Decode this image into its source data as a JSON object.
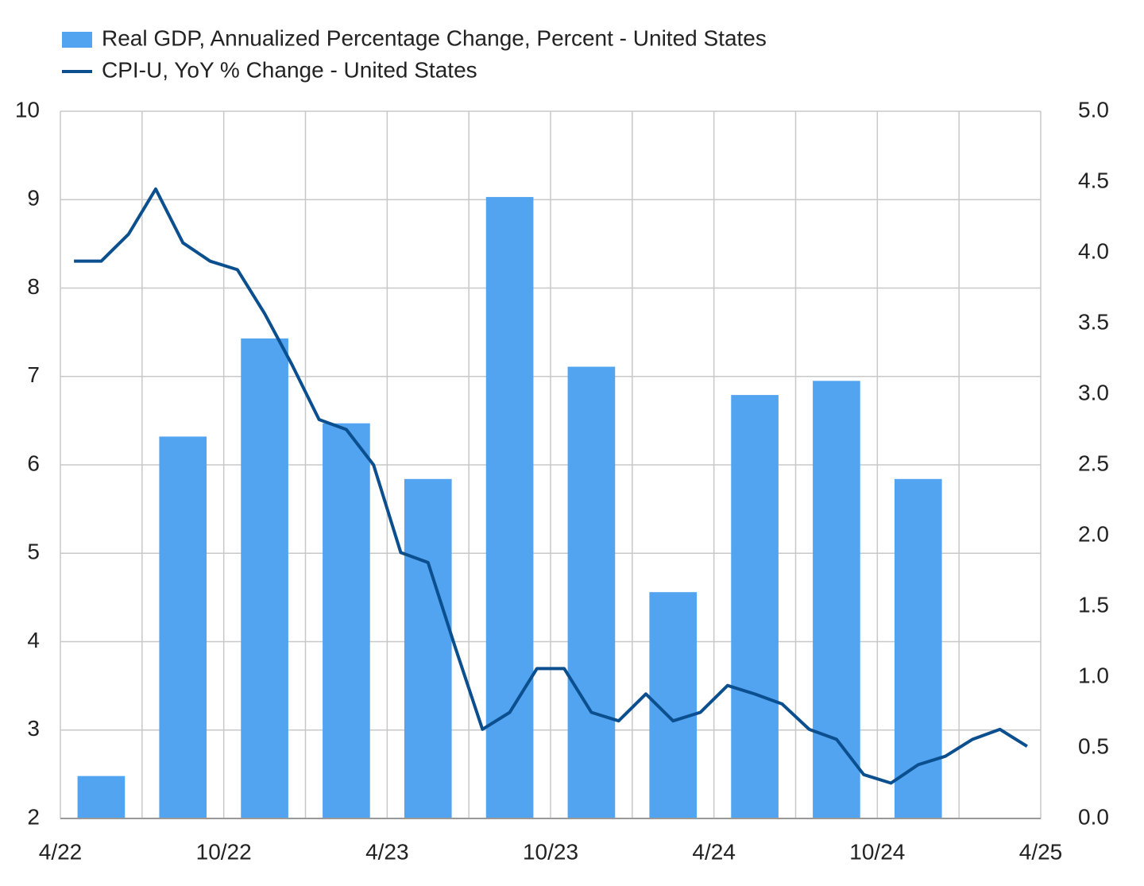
{
  "chart_data": {
    "type": "bar_line",
    "series": [
      {
        "name": "Real GDP, Annualized Percentage Change, Percent - United States",
        "type": "bar",
        "color": "#52a3f0",
        "x": [
          "4/22",
          "7/22",
          "10/22",
          "1/23",
          "4/23",
          "7/23",
          "10/23",
          "1/24",
          "4/24",
          "7/24",
          "10/24"
        ],
        "values": [
          2.48,
          6.32,
          7.43,
          6.47,
          5.84,
          9.03,
          7.11,
          4.56,
          6.79,
          6.95,
          5.84
        ]
      },
      {
        "name": "CPI-U, YoY % Change - United States",
        "type": "line",
        "color": "#0b4f8f",
        "axis": "y2",
        "x": [
          "4/22",
          "5/22",
          "6/22",
          "7/22",
          "8/22",
          "9/22",
          "10/22",
          "11/22",
          "12/22",
          "1/23",
          "2/23",
          "3/23",
          "4/23",
          "5/23",
          "6/23",
          "7/23",
          "8/23",
          "9/23",
          "10/23",
          "11/23",
          "12/23",
          "1/24",
          "2/24",
          "3/24",
          "4/24",
          "5/24",
          "6/24",
          "7/24",
          "8/24",
          "9/24",
          "10/24",
          "11/24",
          "12/24",
          "1/25",
          "2/25",
          "3/25"
        ],
        "values": [
          3.94,
          3.94,
          4.13,
          4.45,
          4.07,
          3.94,
          3.88,
          3.57,
          3.21,
          2.82,
          2.75,
          2.5,
          1.88,
          1.81,
          1.21,
          0.63,
          0.75,
          1.06,
          1.06,
          0.75,
          0.69,
          0.88,
          0.69,
          0.75,
          0.94,
          0.88,
          0.81,
          0.63,
          0.56,
          0.31,
          0.25,
          0.38,
          0.44,
          0.56,
          0.63,
          0.51
        ]
      }
    ],
    "xlim": [
      "4/22",
      "4/25"
    ],
    "xticks": [
      "4/22",
      "10/22",
      "4/23",
      "10/23",
      "4/24",
      "10/24",
      "4/25"
    ],
    "xgrid": [
      "4/22",
      "7/22",
      "10/22",
      "1/23",
      "4/23",
      "7/23",
      "10/23",
      "1/24",
      "4/24",
      "7/24",
      "10/24",
      "1/25",
      "4/25"
    ],
    "ylim": [
      2,
      10
    ],
    "yticks": [
      2,
      3,
      4,
      5,
      6,
      7,
      8,
      9,
      10
    ],
    "y2lim": [
      0,
      5
    ],
    "y2ticks": [
      {
        "value": 0,
        "label": "0.0"
      },
      0.5,
      {
        "value": 1,
        "label": "1.0"
      },
      1.5,
      {
        "value": 2,
        "label": "2.0"
      },
      2.5,
      {
        "value": 3,
        "label": "3.0"
      },
      3.5,
      {
        "value": 4,
        "label": "4.0"
      },
      4.5,
      {
        "value": 5,
        "label": "5.0"
      }
    ],
    "grid": true,
    "legend": "top-left"
  }
}
